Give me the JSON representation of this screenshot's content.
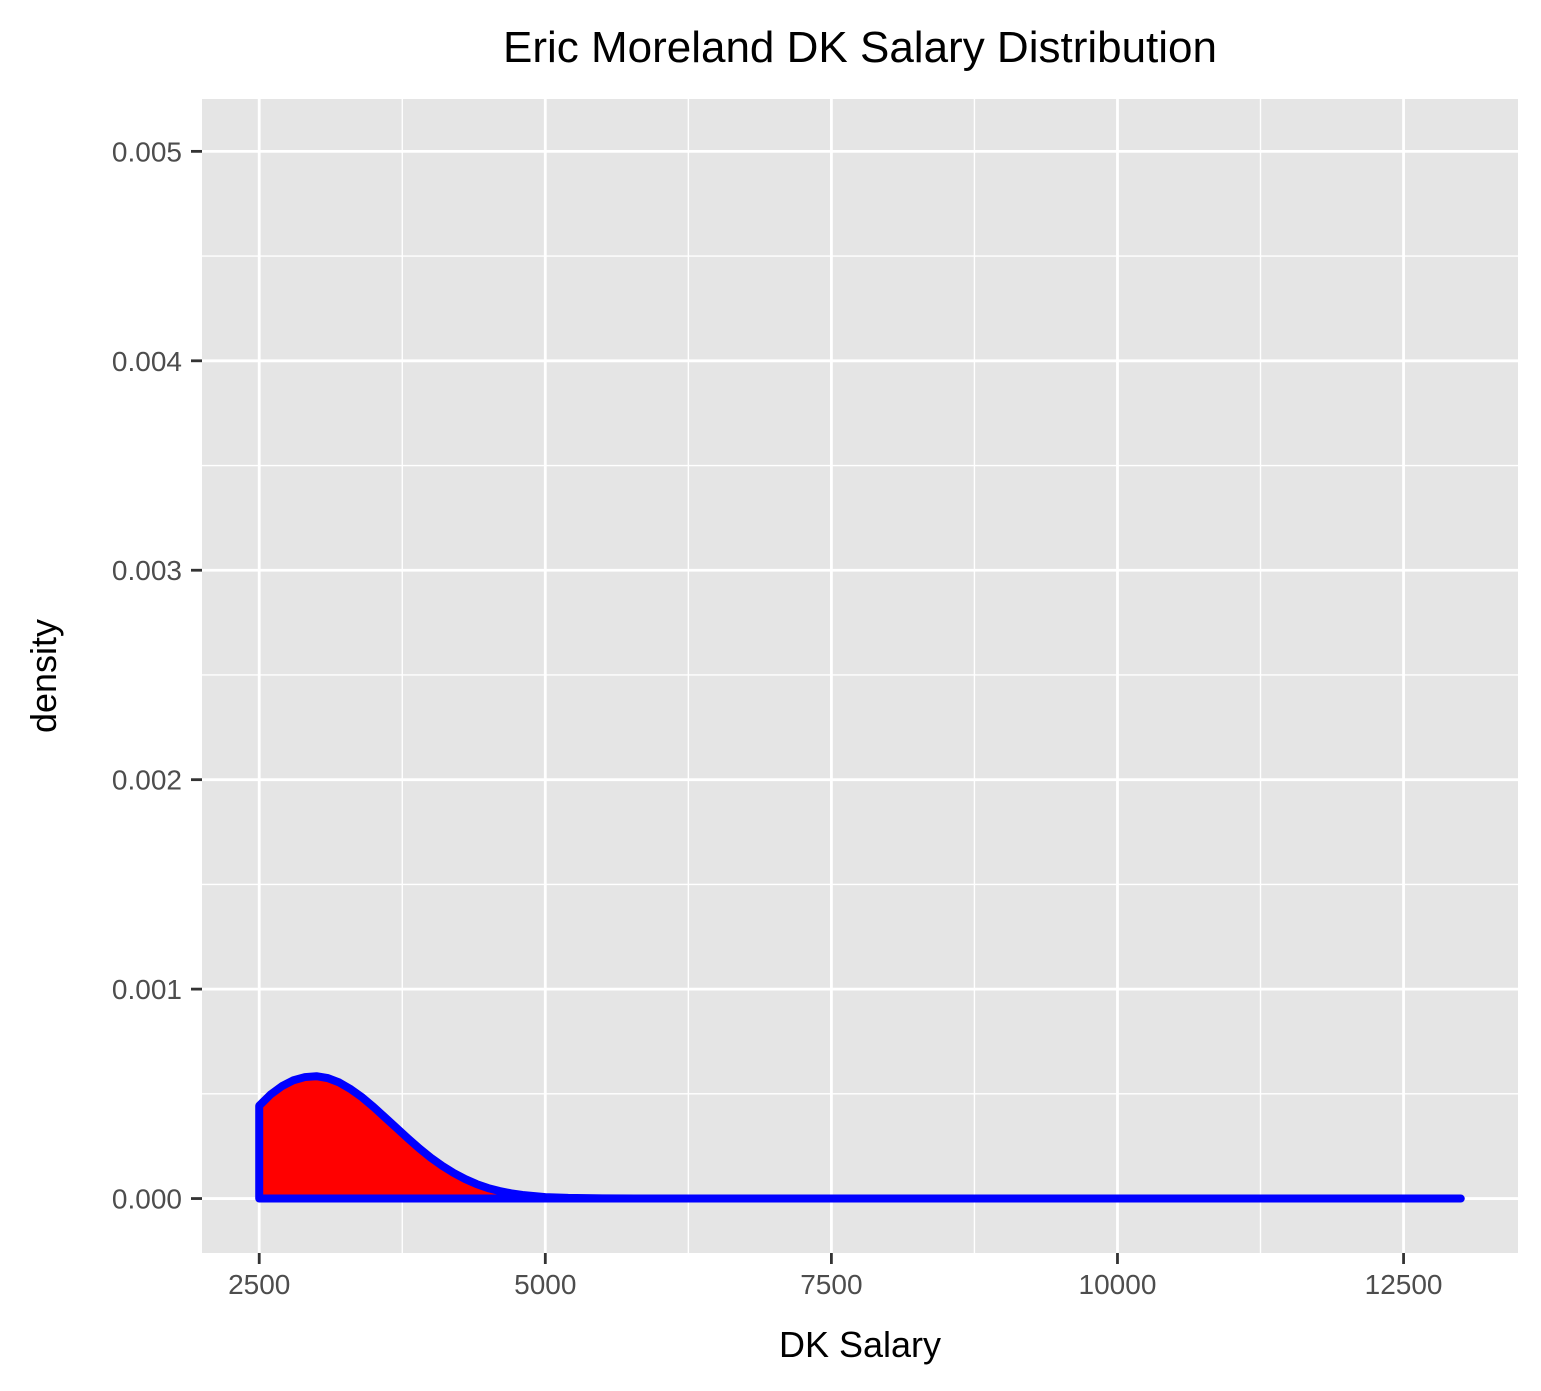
{
  "chart_data": {
    "type": "area",
    "title": "Eric Moreland DK Salary Distribution",
    "xlabel": "DK Salary",
    "ylabel": "density",
    "xlim": [
      2000,
      13500
    ],
    "ylim": [
      -0.00026,
      0.00525
    ],
    "x_ticks": [
      2500,
      5000,
      7500,
      10000,
      12500
    ],
    "x_tick_labels": [
      "2500",
      "5000",
      "7500",
      "10000",
      "12500"
    ],
    "y_ticks": [
      0,
      0.001,
      0.002,
      0.003,
      0.004,
      0.005
    ],
    "y_tick_labels": [
      "0.000",
      "0.001",
      "0.002",
      "0.003",
      "0.004",
      "0.005"
    ],
    "grid": true,
    "legend": "none",
    "series": [
      {
        "x": [
          2500,
          2600,
          2700,
          2800,
          2900,
          3000,
          3100,
          3200,
          3300,
          3400,
          3500,
          3600,
          3700,
          3800,
          3900,
          4000,
          4100,
          4200,
          4300,
          4400,
          4500,
          4600,
          4700,
          4800,
          5000,
          5200,
          5500,
          6000,
          7000,
          8000,
          9000,
          10000,
          11000,
          12000,
          13000
        ],
        "y": [
          0.000443,
          0.000497,
          0.000537,
          0.000565,
          0.00058,
          0.000584,
          0.000575,
          0.000554,
          0.000522,
          0.000483,
          0.000437,
          0.000387,
          0.000337,
          0.000287,
          0.000239,
          0.000195,
          0.000156,
          0.000122,
          9.3e-05,
          6.9e-05,
          5e-05,
          3.6e-05,
          2.5e-05,
          1.7e-05,
          7e-06,
          3e-06,
          1e-06,
          0,
          0,
          0,
          0,
          0,
          0,
          0,
          0
        ]
      }
    ],
    "colors": {
      "fill": "#ff0000",
      "outline": "#0000ff",
      "panel": "#e5e5e5",
      "grid": "#ffffff",
      "tick": "#333333",
      "tick_label": "#4d4d4d"
    }
  }
}
